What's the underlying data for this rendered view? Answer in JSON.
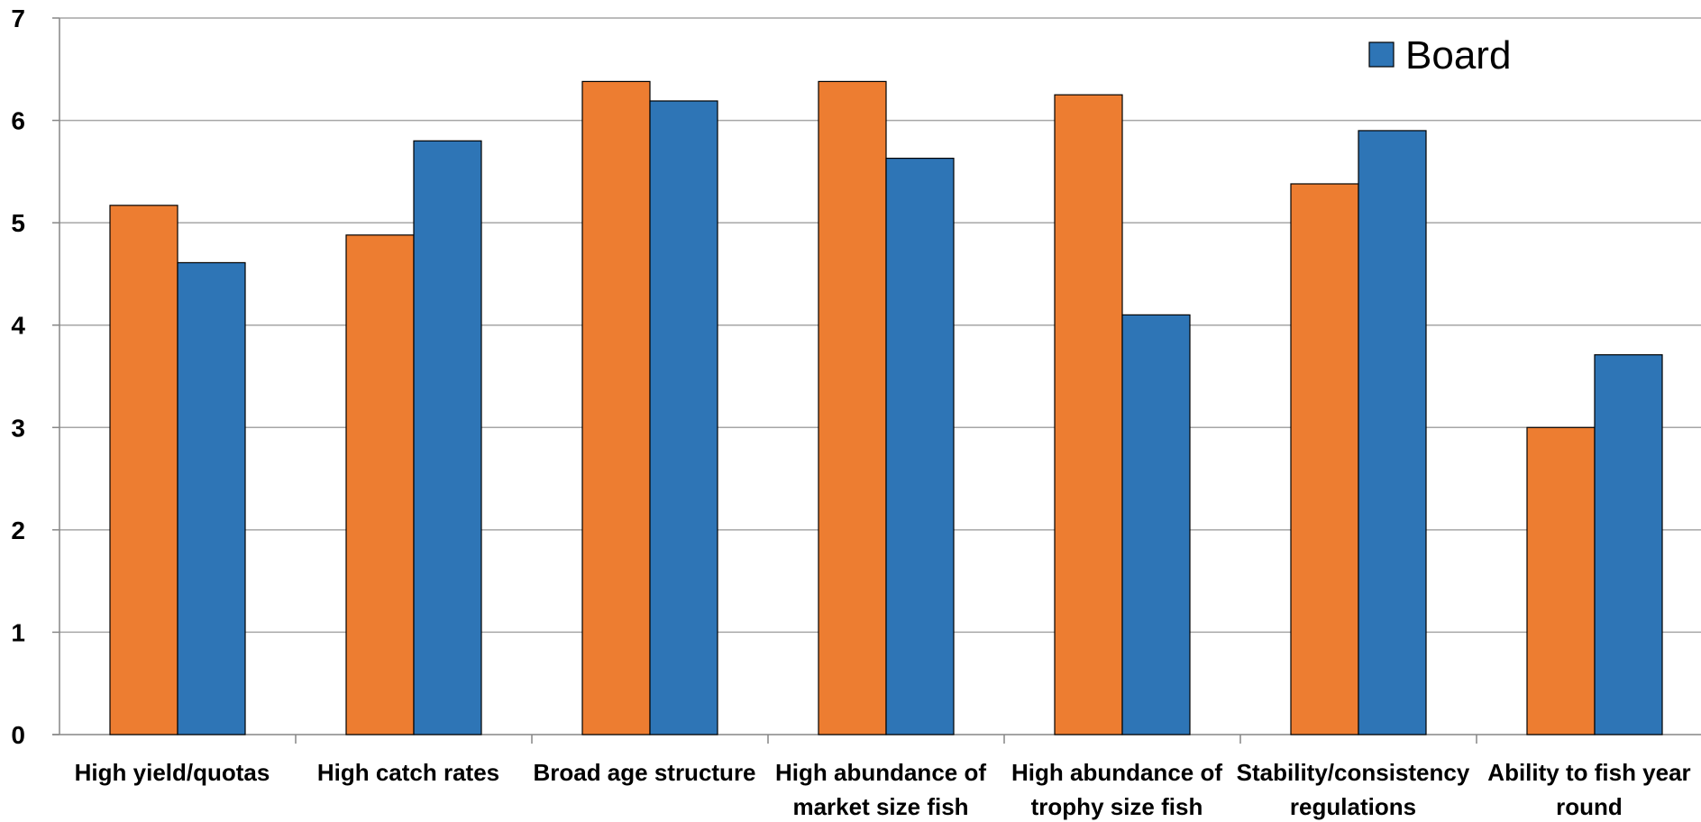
{
  "chart_data": {
    "type": "bar",
    "title": "",
    "xlabel": "",
    "ylabel": "",
    "ylim": [
      0,
      7
    ],
    "yticks": [
      0,
      1,
      2,
      3,
      4,
      5,
      6,
      7
    ],
    "grid": true,
    "legend_position": "top-right",
    "categories": [
      [
        "High yield/quotas"
      ],
      [
        "High catch rates"
      ],
      [
        "Broad age structure"
      ],
      [
        "High abundance of",
        "market size fish"
      ],
      [
        "High abundance of",
        "trophy size fish"
      ],
      [
        "Stability/consistency",
        "regulations"
      ],
      [
        "Ability to fish year",
        "round"
      ]
    ],
    "series": [
      {
        "name": "",
        "color": "#ED7D31",
        "values": [
          5.17,
          4.88,
          6.38,
          6.38,
          6.25,
          5.38,
          3.0
        ]
      },
      {
        "name": "Board",
        "color": "#2E75B6",
        "values": [
          4.61,
          5.8,
          6.19,
          5.63,
          4.1,
          5.9,
          3.71
        ]
      }
    ]
  }
}
